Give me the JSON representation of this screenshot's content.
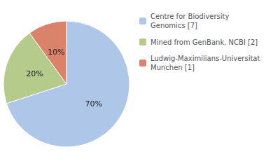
{
  "chart_data": {
    "type": "pie",
    "categories": [
      "Centre for Biodiversity\nGenomics [7]",
      "Mined from GenBank, NCBI [2]",
      "Ludwig-Maximilians-Universitat\nMunchen [1]"
    ],
    "values": [
      70,
      20,
      10
    ],
    "value_labels": [
      "70%",
      "20%",
      "10%"
    ],
    "colors": [
      "#aec6e8",
      "#b5cb8b",
      "#d9836a"
    ],
    "legend": "upper right"
  }
}
